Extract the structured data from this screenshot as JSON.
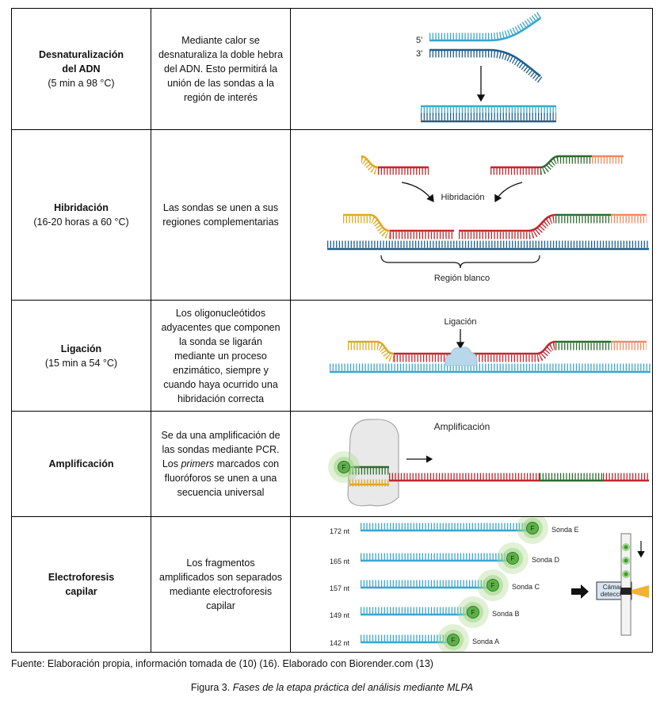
{
  "table": {
    "rows": [
      {
        "name_lines": [
          "Desnaturalización",
          "del ADN"
        ],
        "conditions": "(5 min a 98 °C)",
        "description": [
          "Mediante calor se desnaturaliza la doble hebra del ADN. Esto permitirá la unión de las sondas a la región de interés"
        ]
      },
      {
        "name_lines": [
          "Hibridación"
        ],
        "conditions": "(16-20 horas a 60 °C)",
        "description": [
          "Las sondas se unen a sus regiones complementarias"
        ]
      },
      {
        "name_lines": [
          "Ligación"
        ],
        "conditions": "(15 min a 54 °C)",
        "description": [
          "Los oligonucleótidos adyacentes que componen la sonda se ligarán mediante un proceso enzimático, siempre y cuando haya ocurrido una hibridación correcta"
        ]
      },
      {
        "name_lines": [
          "Amplificación"
        ],
        "description": [
          "Se da una amplificación de las sondas mediante PCR. Los ",
          "primers",
          " marcados con fluoróforos se unen a una secuencia universal"
        ]
      },
      {
        "name_lines": [
          "Electroforesis",
          "capilar"
        ],
        "description": [
          "Los fragmentos amplificados son separados mediante electroforesis capilar"
        ]
      }
    ]
  },
  "diagrams": {
    "denaturation": {
      "five_prime": "5'",
      "three_prime": "3'"
    },
    "hybridization": {
      "label": "Hibridación",
      "target": "Región blanco"
    },
    "ligation": {
      "label": "Ligación"
    },
    "amplification": {
      "label": "Amplificación",
      "fluorophore": "F"
    },
    "electrophoresis": {
      "sizes": [
        "172 nt",
        "165 nt",
        "157 nt",
        "149 nt",
        "142 nt"
      ],
      "probes": [
        "Sonda E",
        "Sonda D",
        "Sonda C",
        "Sonda B",
        "Sonda A"
      ],
      "fluorophore": "F",
      "camera": [
        "Cámara",
        "detección"
      ]
    }
  },
  "footer": {
    "source": "Fuente: Elaboración propia, información tomada de (10) (16). Elaborado con Biorender.com (13)",
    "caption_prefix": "Figura 3.",
    "caption_title": "Fases de la etapa práctica del análisis mediante MLPA"
  }
}
